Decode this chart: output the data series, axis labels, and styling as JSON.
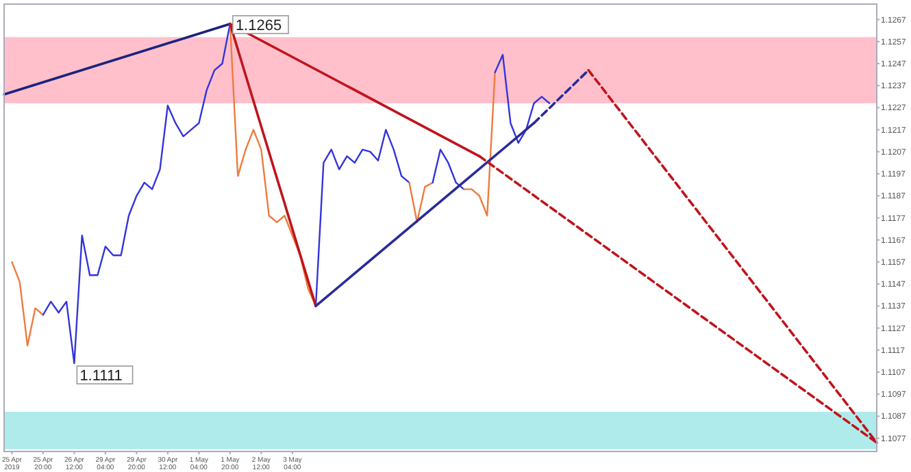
{
  "chart_data": {
    "type": "line",
    "ylim": [
      1.1071,
      1.1274
    ],
    "categories": [
      null,
      "25 Apr 2019",
      null,
      null,
      null,
      "25 Apr 20:00",
      null,
      null,
      null,
      "26 Apr 12:00",
      null,
      null,
      null,
      "29 Apr 04:00",
      null,
      null,
      null,
      "29 Apr 20:00",
      null,
      null,
      null,
      "30 Apr 12:00",
      null,
      null,
      null,
      "1 May 04:00",
      null,
      null,
      null,
      "1 May 20:00",
      null,
      null,
      null,
      "2 May 12:00",
      null,
      null,
      null,
      "3 May 04:00",
      null,
      null,
      null,
      null,
      null,
      null,
      null,
      null,
      null,
      null,
      null,
      null,
      null,
      null,
      null,
      null,
      null,
      null,
      null,
      null,
      null,
      null,
      null,
      null,
      null,
      null,
      null,
      null,
      null,
      null,
      null,
      null,
      null,
      null,
      null,
      null,
      null,
      null,
      null,
      null,
      null,
      null,
      null,
      null,
      null,
      null,
      null,
      null,
      null,
      null,
      null,
      null,
      null,
      null,
      null,
      null,
      null,
      null,
      null,
      null,
      null,
      null,
      null,
      null,
      null,
      null,
      null,
      null,
      null,
      null,
      null,
      null,
      null,
      null,
      null
    ],
    "yticks": [
      1.1077,
      1.1087,
      1.1097,
      1.1107,
      1.1117,
      1.1127,
      1.1137,
      1.1147,
      1.1157,
      1.1167,
      1.1177,
      1.1187,
      1.1197,
      1.1207,
      1.1217,
      1.1227,
      1.1237,
      1.1247,
      1.1257,
      1.1267
    ],
    "marker": "none",
    "bands": [
      {
        "axis": "y",
        "from": 1.1229,
        "to": 1.1259,
        "color": "#ffc0cb"
      },
      {
        "axis": "y",
        "from": 1.1072,
        "to": 1.1089,
        "color": "#b0ebeb"
      }
    ],
    "annotations": [
      {
        "text": "1.1265",
        "x": "1 May 20:00",
        "y": 1.1265
      },
      {
        "text": "1.1111",
        "x": "26 Apr 12:00",
        "y": 1.1111
      }
    ],
    "series": [
      {
        "color": "#f07a3c",
        "line_style": "solid",
        "values": [
          null,
          1.1157,
          1.1148,
          1.1119,
          1.1136,
          1.1133,
          null,
          null,
          null,
          null,
          null,
          null,
          null,
          null,
          null,
          null,
          null,
          null,
          null,
          null,
          null,
          null,
          null,
          null,
          null,
          null,
          null,
          null,
          null,
          null,
          null,
          null,
          null,
          null,
          null,
          null,
          null,
          null,
          null,
          null,
          null,
          null,
          null,
          null,
          null,
          null,
          null,
          null,
          null,
          null,
          null,
          null,
          null,
          null,
          null,
          null,
          null,
          null,
          null,
          null,
          null,
          null,
          null,
          null,
          null,
          null,
          null,
          null,
          null,
          null,
          null,
          null,
          null,
          null,
          null,
          null,
          null,
          null,
          null,
          null,
          null,
          null,
          null,
          null,
          null,
          null,
          null,
          null,
          null,
          null,
          null,
          null,
          null,
          null,
          null,
          null,
          null,
          null,
          null,
          null,
          null,
          null,
          null,
          null,
          null,
          null,
          null,
          null,
          null,
          null,
          null,
          null,
          null
        ]
      },
      {
        "color": "#3333dd",
        "line_style": "solid",
        "values": [
          null,
          null,
          null,
          null,
          null,
          1.1133,
          1.1139,
          1.1134,
          1.1139,
          1.1111,
          1.1169,
          1.1151,
          1.1151,
          1.1164,
          1.116,
          1.116,
          1.1178,
          1.1187,
          1.1193,
          1.119,
          1.1199,
          1.1228,
          1.122,
          1.1214,
          1.1217,
          1.122,
          1.1235,
          1.1244,
          1.1247,
          1.1265,
          null,
          null,
          null,
          null,
          null,
          null,
          null,
          null,
          null,
          null,
          null,
          null,
          null,
          null,
          null,
          null,
          null,
          null,
          null,
          null,
          null,
          null,
          null,
          null,
          null,
          null,
          null,
          null,
          null,
          null,
          null,
          null,
          null,
          null,
          null,
          null,
          null,
          null,
          null,
          null,
          null,
          null,
          null,
          null,
          null,
          null,
          null,
          null,
          null,
          null,
          null,
          null,
          null,
          null,
          null,
          null,
          null,
          null,
          null,
          null,
          null,
          null,
          null,
          null,
          null,
          null,
          null,
          null,
          null,
          null,
          null,
          null,
          null,
          null,
          null,
          null,
          null,
          null,
          null,
          null,
          null,
          null,
          null
        ]
      },
      {
        "color": "#f07a3c",
        "line_style": "solid",
        "values": [
          null,
          null,
          null,
          null,
          null,
          null,
          null,
          null,
          null,
          null,
          null,
          null,
          null,
          null,
          null,
          null,
          null,
          null,
          null,
          null,
          null,
          null,
          null,
          null,
          null,
          null,
          null,
          null,
          null,
          1.1265,
          1.1196,
          1.1208,
          1.1217,
          1.1208,
          1.1178,
          1.1175,
          1.1178,
          1.1169,
          1.116,
          1.1145,
          1.1137,
          null,
          null,
          null,
          null,
          null,
          null,
          null,
          null,
          null,
          null,
          null,
          null,
          null,
          null,
          null,
          null,
          null,
          null,
          null,
          null,
          null,
          null,
          null,
          null,
          null,
          null,
          null,
          null,
          null,
          null,
          null,
          null,
          null,
          null,
          null,
          null,
          null,
          null,
          null,
          null,
          null,
          null,
          null,
          null,
          null,
          null,
          null,
          null,
          null,
          null,
          null,
          null,
          null,
          null,
          null,
          null,
          null,
          null,
          null,
          null,
          null,
          null,
          null,
          null,
          null,
          null,
          null,
          null,
          null,
          null,
          null,
          null
        ]
      },
      {
        "color": "#3333dd",
        "line_style": "solid",
        "values": [
          null,
          null,
          null,
          null,
          null,
          null,
          null,
          null,
          null,
          null,
          null,
          null,
          null,
          null,
          null,
          null,
          null,
          null,
          null,
          null,
          null,
          null,
          null,
          null,
          null,
          null,
          null,
          null,
          null,
          null,
          null,
          null,
          null,
          null,
          null,
          null,
          null,
          null,
          null,
          null,
          1.1137,
          1.1202,
          1.1208,
          1.1199,
          1.1205,
          1.1202,
          1.1208,
          1.1207,
          1.1203,
          1.1217,
          1.1208,
          1.1196,
          1.1193,
          null,
          null,
          null,
          null,
          null,
          null,
          null,
          null,
          null,
          null,
          null,
          null,
          null,
          null,
          null,
          null,
          null,
          null,
          null,
          null,
          null,
          null,
          null,
          null,
          null,
          null,
          null,
          null,
          null,
          null,
          null,
          null,
          null,
          null,
          null,
          null,
          null,
          null,
          null,
          null,
          null,
          null,
          null,
          null,
          null,
          null,
          null,
          null,
          null,
          null,
          null,
          null,
          null,
          null,
          null,
          null,
          null,
          null,
          null,
          null
        ]
      },
      {
        "color": "#f07a3c",
        "line_style": "solid",
        "values": [
          null,
          null,
          null,
          null,
          null,
          null,
          null,
          null,
          null,
          null,
          null,
          null,
          null,
          null,
          null,
          null,
          null,
          null,
          null,
          null,
          null,
          null,
          null,
          null,
          null,
          null,
          null,
          null,
          null,
          null,
          null,
          null,
          null,
          null,
          null,
          null,
          null,
          null,
          null,
          null,
          null,
          null,
          null,
          null,
          null,
          null,
          null,
          null,
          null,
          null,
          null,
          null,
          1.1193,
          1.1175,
          1.1191,
          1.1193,
          null,
          null,
          null,
          null,
          null,
          null,
          null,
          null,
          null,
          null,
          null,
          null,
          null,
          null,
          null,
          null,
          null,
          null,
          null,
          null,
          null,
          null,
          null,
          null,
          null,
          null,
          null,
          null,
          null,
          null,
          null,
          null,
          null,
          null,
          null,
          null,
          null,
          null,
          null,
          null,
          null,
          null,
          null,
          null,
          null,
          null,
          null,
          null,
          null,
          null,
          null,
          null,
          null,
          null,
          null,
          null,
          null
        ]
      },
      {
        "color": "#3333dd",
        "line_style": "solid",
        "values": [
          null,
          null,
          null,
          null,
          null,
          null,
          null,
          null,
          null,
          null,
          null,
          null,
          null,
          null,
          null,
          null,
          null,
          null,
          null,
          null,
          null,
          null,
          null,
          null,
          null,
          null,
          null,
          null,
          null,
          null,
          null,
          null,
          null,
          null,
          null,
          null,
          null,
          null,
          null,
          null,
          null,
          null,
          null,
          null,
          null,
          null,
          null,
          null,
          null,
          null,
          null,
          null,
          null,
          null,
          null,
          1.1193,
          1.1208,
          1.1202,
          1.1193,
          1.119,
          null,
          null,
          null,
          null,
          null,
          null,
          null,
          null,
          null,
          null,
          null,
          null,
          null,
          null,
          null,
          null,
          null,
          null,
          null,
          null,
          null,
          null,
          null,
          null,
          null,
          null,
          null,
          null,
          null,
          null,
          null,
          null,
          null,
          null,
          null,
          null,
          null,
          null,
          null,
          null,
          null,
          null,
          null,
          null,
          null,
          null,
          null,
          null,
          null,
          null,
          null,
          null,
          null
        ]
      },
      {
        "color": "#f07a3c",
        "line_style": "solid",
        "values": [
          null,
          null,
          null,
          null,
          null,
          null,
          null,
          null,
          null,
          null,
          null,
          null,
          null,
          null,
          null,
          null,
          null,
          null,
          null,
          null,
          null,
          null,
          null,
          null,
          null,
          null,
          null,
          null,
          null,
          null,
          null,
          null,
          null,
          null,
          null,
          null,
          null,
          null,
          null,
          null,
          null,
          null,
          null,
          null,
          null,
          null,
          null,
          null,
          null,
          null,
          null,
          null,
          null,
          null,
          null,
          null,
          null,
          null,
          null,
          1.119,
          1.119,
          1.1187,
          1.1178,
          1.1243,
          null,
          null,
          null,
          null,
          null,
          null,
          null,
          null,
          null,
          null,
          null,
          null,
          null,
          null,
          null,
          null,
          null,
          null,
          null,
          null,
          null,
          null,
          null,
          null,
          null,
          null,
          null,
          null,
          null,
          null,
          null,
          null,
          null,
          null,
          null,
          null,
          null,
          null,
          null,
          null,
          null,
          null,
          null,
          null,
          null,
          null,
          null,
          null,
          null
        ]
      },
      {
        "color": "#3333dd",
        "line_style": "solid",
        "values": [
          null,
          null,
          null,
          null,
          null,
          null,
          null,
          null,
          null,
          null,
          null,
          null,
          null,
          null,
          null,
          null,
          null,
          null,
          null,
          null,
          null,
          null,
          null,
          null,
          null,
          null,
          null,
          null,
          null,
          null,
          null,
          null,
          null,
          null,
          null,
          null,
          null,
          null,
          null,
          null,
          null,
          null,
          null,
          null,
          null,
          null,
          null,
          null,
          null,
          null,
          null,
          null,
          null,
          null,
          null,
          null,
          null,
          null,
          null,
          null,
          null,
          null,
          null,
          1.1243,
          1.1251,
          1.122,
          1.1211,
          1.1217,
          1.1229,
          1.1232,
          1.1229,
          null,
          null,
          null,
          null,
          null,
          null,
          null,
          null,
          null,
          null,
          null,
          null,
          null,
          null,
          null,
          null,
          null,
          null,
          null,
          null,
          null,
          null,
          null,
          null,
          null,
          null,
          null,
          null,
          null,
          null,
          null,
          null,
          null,
          null,
          null,
          null,
          null,
          null,
          null,
          null,
          null,
          null
        ]
      },
      {
        "color": "#1a237e",
        "line_style": "solid",
        "values": [
          1.1233,
          null,
          null,
          null,
          null,
          null,
          null,
          null,
          null,
          null,
          null,
          null,
          null,
          null,
          null,
          null,
          null,
          null,
          null,
          null,
          null,
          null,
          null,
          null,
          null,
          null,
          null,
          null,
          null,
          1.1265,
          null,
          null,
          null,
          null,
          null,
          null,
          null,
          null,
          null,
          null,
          null,
          null,
          null,
          null,
          null,
          null,
          null,
          null,
          null,
          null,
          null,
          null,
          null,
          null,
          null,
          null,
          null,
          null,
          null,
          null,
          null,
          null,
          null,
          null,
          null,
          null,
          null,
          null,
          null,
          null,
          null,
          null,
          null,
          null,
          null,
          null,
          null,
          null,
          null,
          null,
          null,
          null,
          null,
          null,
          null,
          null,
          null,
          null,
          null,
          null,
          null,
          null,
          null,
          null,
          null,
          null,
          null,
          null,
          null,
          null,
          null,
          null,
          null,
          null,
          null,
          null,
          null,
          null,
          null,
          null,
          null,
          null,
          null
        ]
      },
      {
        "color": "#c0141c",
        "line_style": "solid",
        "values": [
          null,
          null,
          null,
          null,
          null,
          null,
          null,
          null,
          null,
          null,
          null,
          null,
          null,
          null,
          null,
          null,
          null,
          null,
          null,
          null,
          null,
          null,
          null,
          null,
          null,
          null,
          null,
          null,
          null,
          1.1265,
          null,
          null,
          null,
          null,
          null,
          null,
          null,
          null,
          null,
          null,
          1.1137,
          null,
          null,
          null,
          null,
          null,
          null,
          null,
          null,
          null,
          null,
          null,
          null,
          null,
          null,
          null,
          null,
          null,
          null,
          null,
          null,
          null,
          null,
          null,
          null,
          null,
          null,
          null,
          null,
          null,
          null,
          null,
          null,
          null,
          null,
          null,
          null,
          null,
          null,
          null,
          null,
          null,
          null,
          null,
          null,
          null,
          null,
          null,
          null,
          null,
          null,
          null,
          null,
          null,
          null,
          null,
          null,
          null,
          null,
          null,
          null,
          null,
          null,
          null,
          null,
          null,
          null,
          null,
          null,
          null,
          null,
          null,
          null
        ]
      },
      {
        "color": "#2a2a9a",
        "line_style": "solid",
        "values": [
          null,
          null,
          null,
          null,
          null,
          null,
          null,
          null,
          null,
          null,
          null,
          null,
          null,
          null,
          null,
          null,
          null,
          null,
          null,
          null,
          null,
          null,
          null,
          null,
          null,
          null,
          null,
          null,
          null,
          null,
          null,
          null,
          null,
          null,
          null,
          null,
          null,
          null,
          null,
          null,
          1.1137,
          null,
          null,
          null,
          null,
          null,
          null,
          null,
          null,
          null,
          null,
          null,
          null,
          null,
          null,
          null,
          null,
          null,
          null,
          null,
          null,
          null,
          null,
          null,
          null,
          null,
          null,
          null,
          1.122,
          null,
          null,
          null,
          null,
          null,
          null,
          null,
          null,
          null,
          null,
          null,
          null,
          null,
          null,
          null,
          null,
          null,
          null,
          null,
          null,
          null,
          null,
          null,
          null,
          null,
          null,
          null,
          null,
          null,
          null,
          null,
          null,
          null,
          null,
          null,
          null,
          null,
          null,
          null,
          null,
          null,
          null,
          null,
          null
        ]
      },
      {
        "color": "#2a2a9a",
        "line_style": "dashed",
        "values": [
          null,
          null,
          null,
          null,
          null,
          null,
          null,
          null,
          null,
          null,
          null,
          null,
          null,
          null,
          null,
          null,
          null,
          null,
          null,
          null,
          null,
          null,
          null,
          null,
          null,
          null,
          null,
          null,
          null,
          null,
          null,
          null,
          null,
          null,
          null,
          null,
          null,
          null,
          null,
          null,
          null,
          null,
          null,
          null,
          null,
          null,
          null,
          null,
          null,
          null,
          null,
          null,
          null,
          null,
          null,
          null,
          null,
          null,
          null,
          null,
          null,
          null,
          null,
          null,
          null,
          null,
          null,
          null,
          1.122,
          null,
          null,
          null,
          null,
          null,
          null,
          1.1244,
          null,
          null,
          null,
          null,
          null,
          null,
          null,
          null,
          null,
          null,
          null,
          null,
          null,
          null,
          null,
          null,
          null,
          null,
          null,
          null,
          null,
          null,
          null,
          null,
          null,
          null,
          null,
          null,
          null,
          null,
          null,
          null,
          null,
          null,
          null,
          null,
          null
        ]
      },
      {
        "color": "#c0141c",
        "line_style": "solid",
        "values": [
          null,
          null,
          null,
          null,
          null,
          null,
          null,
          null,
          null,
          null,
          null,
          null,
          null,
          null,
          null,
          null,
          null,
          null,
          null,
          null,
          null,
          null,
          null,
          null,
          null,
          null,
          null,
          null,
          null,
          1.1265,
          null,
          null,
          null,
          null,
          null,
          null,
          null,
          null,
          null,
          null,
          null,
          null,
          null,
          null,
          null,
          null,
          null,
          null,
          null,
          null,
          null,
          null,
          null,
          null,
          null,
          null,
          null,
          null,
          null,
          null,
          null,
          1.1205,
          null,
          null,
          null,
          null,
          null,
          null,
          null,
          null,
          null,
          null,
          null,
          null,
          null,
          null,
          null,
          null,
          null,
          null,
          null,
          null,
          null,
          null,
          null,
          null,
          null,
          null,
          null,
          null,
          null,
          null,
          null,
          null,
          null,
          null,
          null,
          null,
          null,
          null,
          null,
          null,
          null,
          null,
          null,
          null,
          null,
          null,
          null,
          null,
          null,
          null,
          null
        ]
      },
      {
        "color": "#c0141c",
        "line_style": "dashed",
        "values": [
          null,
          null,
          null,
          null,
          null,
          null,
          null,
          null,
          null,
          null,
          null,
          null,
          null,
          null,
          null,
          null,
          null,
          null,
          null,
          null,
          null,
          null,
          null,
          null,
          null,
          null,
          null,
          null,
          null,
          null,
          null,
          null,
          null,
          null,
          null,
          null,
          null,
          null,
          null,
          null,
          null,
          null,
          null,
          null,
          null,
          null,
          null,
          null,
          null,
          null,
          null,
          null,
          null,
          null,
          null,
          null,
          null,
          null,
          null,
          null,
          null,
          1.1205,
          null,
          null,
          null,
          null,
          null,
          null,
          null,
          null,
          null,
          null,
          null,
          null,
          null,
          null,
          null,
          null,
          null,
          null,
          null,
          null,
          null,
          null,
          null,
          null,
          null,
          null,
          null,
          null,
          null,
          null,
          null,
          null,
          null,
          null,
          null,
          null,
          null,
          null,
          null,
          null,
          null,
          null,
          null,
          null,
          null,
          null,
          null,
          null,
          null,
          null,
          1.1075
        ]
      },
      {
        "color": "#c0141c",
        "line_style": "dashed",
        "values": [
          null,
          null,
          null,
          null,
          null,
          null,
          null,
          null,
          null,
          null,
          null,
          null,
          null,
          null,
          null,
          null,
          null,
          null,
          null,
          null,
          null,
          null,
          null,
          null,
          null,
          null,
          null,
          null,
          null,
          null,
          null,
          null,
          null,
          null,
          null,
          null,
          null,
          null,
          null,
          null,
          null,
          null,
          null,
          null,
          null,
          null,
          null,
          null,
          null,
          null,
          null,
          null,
          null,
          null,
          null,
          null,
          null,
          null,
          null,
          null,
          null,
          null,
          null,
          null,
          null,
          null,
          null,
          null,
          null,
          null,
          null,
          null,
          null,
          null,
          null,
          1.1244,
          null,
          null,
          null,
          null,
          null,
          null,
          null,
          null,
          null,
          null,
          null,
          null,
          null,
          null,
          null,
          null,
          null,
          null,
          null,
          null,
          null,
          null,
          null,
          null,
          null,
          null,
          null,
          null,
          null,
          null,
          null,
          null,
          null,
          null,
          null,
          null,
          1.1075
        ]
      }
    ]
  }
}
